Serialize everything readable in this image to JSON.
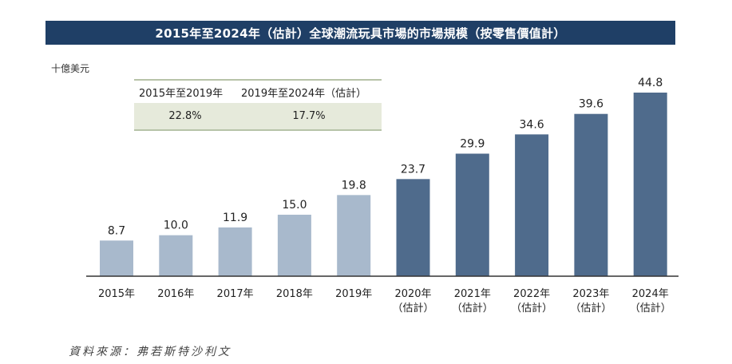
{
  "chart_data": {
    "type": "bar",
    "title": "2015年至2024年（估計）全球潮流玩具市場的市場規模（按零售價值計）",
    "unit": "十億美元",
    "categories": [
      [
        "2015年"
      ],
      [
        "2016年"
      ],
      [
        "2017年"
      ],
      [
        "2018年"
      ],
      [
        "2019年"
      ],
      [
        "2020年",
        "（估計）"
      ],
      [
        "2021年",
        "（估計）"
      ],
      [
        "2022年",
        "（估計）"
      ],
      [
        "2023年",
        "（估計）"
      ],
      [
        "2024年",
        "（估計）"
      ]
    ],
    "values": [
      8.7,
      10.0,
      11.9,
      15.0,
      19.8,
      23.7,
      29.9,
      34.6,
      39.6,
      44.8
    ],
    "value_labels": [
      "8.7",
      "10.0",
      "11.9",
      "15.0",
      "19.8",
      "23.7",
      "29.9",
      "34.6",
      "39.6",
      "44.8"
    ],
    "estimated_from_index": 5,
    "colors": {
      "actual": "#a8b9cc",
      "estimated": "#4f6b8c",
      "axis": "#333333"
    },
    "ylim": [
      0,
      44.8
    ]
  },
  "cagr_table": {
    "headers": [
      "2015年至2019年",
      "2019年至2024年（估計）"
    ],
    "values": [
      "22.8%",
      "17.7%"
    ]
  },
  "source": "資料來源：弗若斯特沙利文"
}
